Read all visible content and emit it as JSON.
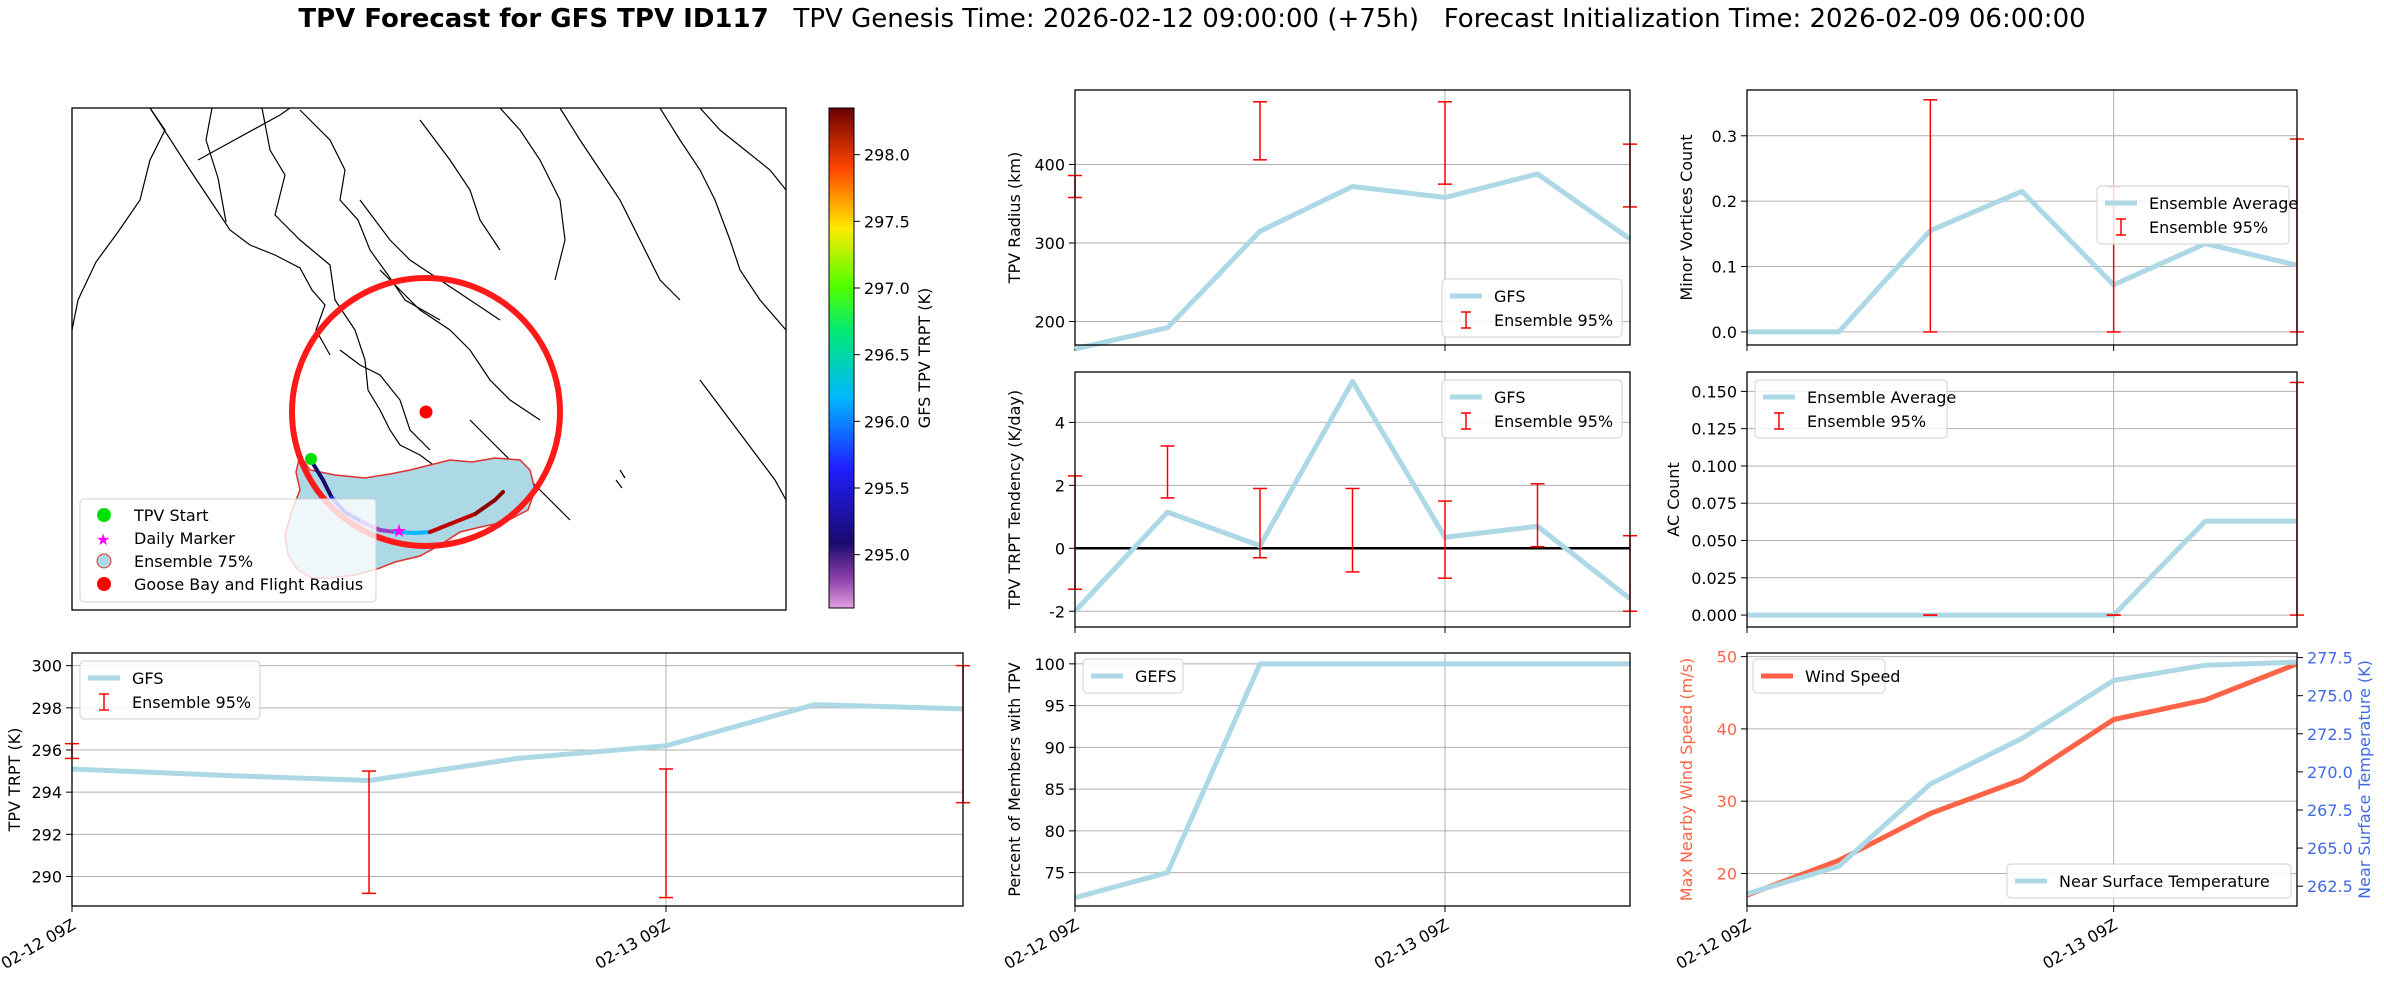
{
  "title": {
    "bold": "TPV Forecast for GFS TPV ID117",
    "genesis": "TPV Genesis Time: 2026-02-12 09:00:00 (+75h)",
    "init": "Forecast Initialization Time: 2026-02-09 06:00:00"
  },
  "colors": {
    "gfs_line": "#add8e6",
    "error_bar": "#ff0000",
    "wind": "#ff6347",
    "temp_axis": "#4169e1",
    "map_circle": "#ff1a1a",
    "ensemble_fill": "#add8e6"
  },
  "map": {
    "colorbar_label": "GFS TPV TRPT (K)",
    "colorbar_ticks": [
      "295.0",
      "295.5",
      "296.0",
      "296.5",
      "297.0",
      "297.5",
      "298.0"
    ],
    "legend": [
      {
        "label": "TPV Start",
        "icon": "green-dot"
      },
      {
        "label": "Daily Marker",
        "icon": "magenta-star"
      },
      {
        "label": "Ensemble 75%",
        "icon": "lightblue-dot"
      },
      {
        "label": "Goose Bay and Flight Radius",
        "icon": "red-dot"
      }
    ]
  },
  "chart_data": [
    {
      "id": "radius",
      "type": "line",
      "ylabel": "TPV Radius (km)",
      "ylim": [
        170,
        495
      ],
      "yticks": [
        200,
        300,
        400
      ],
      "x": [
        0,
        1,
        2,
        3,
        4,
        5,
        6
      ],
      "series": [
        {
          "name": "GFS",
          "values": [
            165,
            192,
            315,
            372,
            358,
            388,
            305
          ]
        }
      ],
      "errorbars": [
        {
          "x": 0,
          "low": 358,
          "high": 386
        },
        {
          "x": 2,
          "low": 406,
          "high": 480
        },
        {
          "x": 4,
          "low": 375,
          "high": 480
        },
        {
          "x": 6,
          "low": 346,
          "high": 426
        }
      ],
      "legend": [
        "GFS",
        "Ensemble 95%"
      ],
      "legend_pos": "lower-right",
      "xgrid": [
        4
      ]
    },
    {
      "id": "minor_vortices",
      "type": "line",
      "ylabel": "Minor Vortices Count",
      "ylim": [
        -0.02,
        0.37
      ],
      "yticks": [
        "0.0",
        "0.1",
        "0.2",
        "0.3"
      ],
      "x": [
        0,
        1,
        2,
        3,
        4,
        5,
        6
      ],
      "series": [
        {
          "name": "Ensemble Average",
          "values": [
            0.0,
            0.0,
            0.155,
            0.215,
            0.072,
            0.135,
            0.102
          ]
        }
      ],
      "errorbars": [
        {
          "x": 2,
          "low": 0.0,
          "high": 0.355
        },
        {
          "x": 4,
          "low": 0.0,
          "high": 0.222
        },
        {
          "x": 6,
          "low": 0.0,
          "high": 0.295
        }
      ],
      "legend": [
        "Ensemble Average",
        "Ensemble 95%"
      ],
      "legend_pos": "right",
      "xgrid": [
        4
      ]
    },
    {
      "id": "tendency",
      "type": "line",
      "ylabel": "TPV TRPT Tendency (K/day)",
      "ylim": [
        -2.5,
        5.6
      ],
      "yticks": [
        -2,
        0,
        2,
        4
      ],
      "x": [
        0,
        1,
        2,
        3,
        4,
        5,
        6
      ],
      "series": [
        {
          "name": "GFS",
          "values": [
            -2.0,
            1.15,
            0.08,
            5.3,
            0.35,
            0.7,
            -1.6
          ]
        }
      ],
      "errorbars": [
        {
          "x": 0,
          "low": -1.3,
          "high": 2.3
        },
        {
          "x": 1,
          "low": 1.6,
          "high": 3.25
        },
        {
          "x": 2,
          "low": -0.3,
          "high": 1.9
        },
        {
          "x": 3,
          "low": -0.75,
          "high": 1.9
        },
        {
          "x": 4,
          "low": -0.95,
          "high": 1.5
        },
        {
          "x": 5,
          "low": 0.05,
          "high": 2.05
        },
        {
          "x": 6,
          "low": -2.0,
          "high": 0.4
        }
      ],
      "zero_line": true,
      "legend": [
        "GFS",
        "Ensemble 95%"
      ],
      "legend_pos": "top-right",
      "xgrid": [
        4
      ]
    },
    {
      "id": "ac_count",
      "type": "line",
      "ylabel": "AC Count",
      "ylim": [
        -0.008,
        0.163
      ],
      "yticks": [
        "0.000",
        "0.025",
        "0.050",
        "0.075",
        "0.100",
        "0.125",
        "0.150"
      ],
      "x": [
        0,
        1,
        2,
        3,
        4,
        5,
        6
      ],
      "series": [
        {
          "name": "Ensemble Average",
          "values": [
            0,
            0,
            0,
            0,
            0,
            0.063,
            0.063
          ]
        }
      ],
      "errorbars": [
        {
          "x": 2,
          "low": 0,
          "high": 0
        },
        {
          "x": 4,
          "low": 0,
          "high": 0
        },
        {
          "x": 6,
          "low": 0,
          "high": 0.156
        }
      ],
      "legend": [
        "Ensemble Average",
        "Ensemble 95%"
      ],
      "legend_pos": "top-left",
      "xgrid": [
        4
      ]
    },
    {
      "id": "trpt",
      "type": "line",
      "ylabel": "TPV TRPT (K)",
      "ylim": [
        288.6,
        300.6
      ],
      "yticks": [
        290,
        292,
        294,
        296,
        298,
        300
      ],
      "x": [
        0,
        1,
        2,
        3,
        4,
        5,
        6
      ],
      "xticks": [
        {
          "x": 0,
          "label": "02-12 09Z"
        },
        {
          "x": 4,
          "label": "02-13 09Z"
        }
      ],
      "series": [
        {
          "name": "GFS",
          "values": [
            295.1,
            294.8,
            294.55,
            295.6,
            296.2,
            298.15,
            297.95
          ]
        }
      ],
      "errorbars": [
        {
          "x": 0,
          "low": 295.6,
          "high": 296.3
        },
        {
          "x": 2,
          "low": 289.2,
          "high": 295.0
        },
        {
          "x": 4,
          "low": 289.0,
          "high": 295.1
        },
        {
          "x": 6,
          "low": 293.5,
          "high": 300.0
        }
      ],
      "legend": [
        "GFS",
        "Ensemble 95%"
      ],
      "legend_pos": "top-left",
      "xgrid": [
        4
      ]
    },
    {
      "id": "percent",
      "type": "line",
      "ylabel": "Percent of Members with TPV",
      "ylim": [
        71.0,
        101.3
      ],
      "yticks": [
        75,
        80,
        85,
        90,
        95,
        100
      ],
      "x": [
        0,
        1,
        2,
        3,
        4,
        5,
        6
      ],
      "xticks": [
        {
          "x": 0,
          "label": "02-12 09Z"
        },
        {
          "x": 4,
          "label": "02-13 09Z"
        }
      ],
      "series": [
        {
          "name": "GEFS",
          "values": [
            72,
            75,
            100,
            100,
            100,
            100,
            100
          ]
        }
      ],
      "legend": [
        "GEFS"
      ],
      "legend_pos": "top-left",
      "xgrid": [
        4
      ]
    },
    {
      "id": "wind_temp",
      "type": "line",
      "ylabel": "Max Nearby Wind Speed (m/s)",
      "ylabel_right": "Near Surface Temperature (K)",
      "ylim": [
        15.5,
        50.5
      ],
      "yticks": [
        20,
        30,
        40,
        50
      ],
      "ylim_right": [
        261.2,
        277.8
      ],
      "yticks_right": [
        "262.5",
        "265.0",
        "267.5",
        "270.0",
        "272.5",
        "275.0",
        "277.5"
      ],
      "x": [
        0,
        1,
        2,
        3,
        4,
        5,
        6
      ],
      "xticks": [
        {
          "x": 0,
          "label": "02-12 09Z"
        },
        {
          "x": 4,
          "label": "02-13 09Z"
        }
      ],
      "series": [
        {
          "name": "Wind Speed",
          "values": [
            17.0,
            21.8,
            28.3,
            33.0,
            41.3,
            44.0,
            49.0
          ],
          "axis": "left"
        },
        {
          "name": "Near Surface Temperature",
          "values": [
            262.0,
            263.8,
            269.2,
            272.2,
            276.0,
            277.0,
            277.2
          ],
          "axis": "right"
        }
      ],
      "legend": [
        "Wind Speed",
        "Near Surface Temperature"
      ],
      "xgrid": [
        4
      ]
    }
  ]
}
